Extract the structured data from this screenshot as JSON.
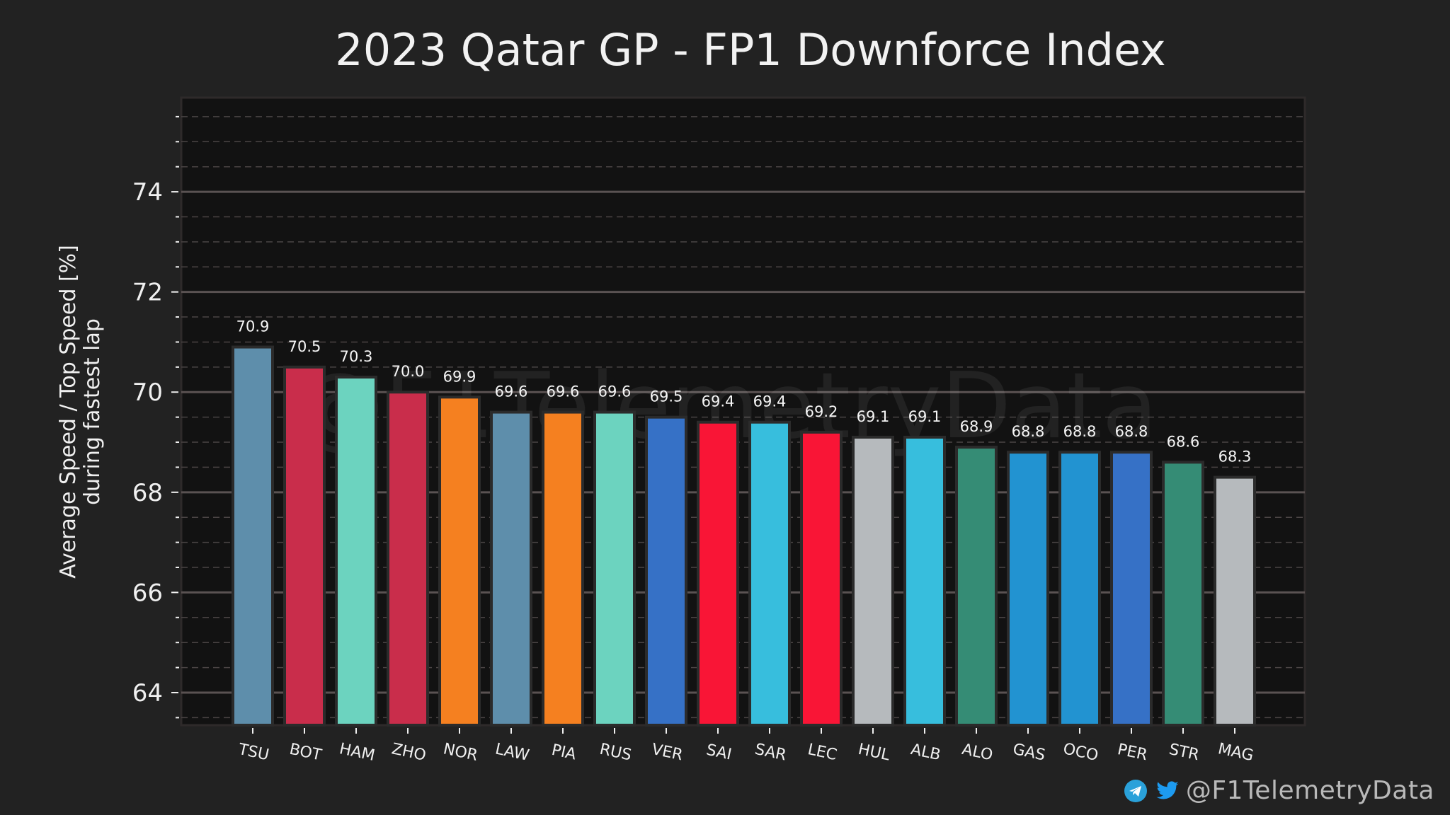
{
  "chart_data": {
    "type": "bar",
    "title": "2023 Qatar GP - FP1 Downforce Index",
    "xlabel": "",
    "ylabel_lines": [
      "Average Speed / Top Speed [%]",
      "during fastest lap"
    ],
    "categories": [
      "TSU",
      "BOT",
      "HAM",
      "ZHO",
      "NOR",
      "LAW",
      "PIA",
      "RUS",
      "VER",
      "SAI",
      "SAR",
      "LEC",
      "HUL",
      "ALB",
      "ALO",
      "GAS",
      "OCO",
      "PER",
      "STR",
      "MAG"
    ],
    "values": [
      70.9,
      70.5,
      70.3,
      70.0,
      69.9,
      69.6,
      69.6,
      69.6,
      69.5,
      69.4,
      69.4,
      69.2,
      69.1,
      69.1,
      68.9,
      68.8,
      68.8,
      68.8,
      68.6,
      68.3
    ],
    "data_labels": [
      "70.9",
      "70.5",
      "70.3",
      "70.0",
      "69.9",
      "69.6",
      "69.6",
      "69.6",
      "69.5",
      "69.4",
      "69.4",
      "69.2",
      "69.1",
      "69.1",
      "68.9",
      "68.8",
      "68.8",
      "68.8",
      "68.6",
      "68.3"
    ],
    "colors": [
      "#5e8eab",
      "#c92d4b",
      "#6cd3bf",
      "#c92d4b",
      "#f58020",
      "#5e8eab",
      "#f58020",
      "#6cd3bf",
      "#3671c6",
      "#f91536",
      "#37bedd",
      "#f91536",
      "#b6babd",
      "#37bedd",
      "#358c75",
      "#2293d1",
      "#2293d1",
      "#3671c6",
      "#358c75",
      "#b6babd"
    ],
    "ylim": [
      63.35,
      75.88
    ],
    "yticks": [
      64,
      66,
      68,
      70,
      72,
      74
    ],
    "ytick_labels": [
      "64",
      "66",
      "68",
      "70",
      "72",
      "74"
    ],
    "minor_tick_step": 0.5,
    "grid": true,
    "legend": "none",
    "watermark": "@F1TelemetryData"
  },
  "colors": {
    "background": "#222222",
    "plot_background": "#121212",
    "major_grid": "#5a5252",
    "minor_grid": "#4a4444",
    "text": "#f0f0f0"
  },
  "footer": {
    "handle": "@F1TelemetryData",
    "icons": [
      "telegram-icon",
      "twitter-icon"
    ]
  }
}
